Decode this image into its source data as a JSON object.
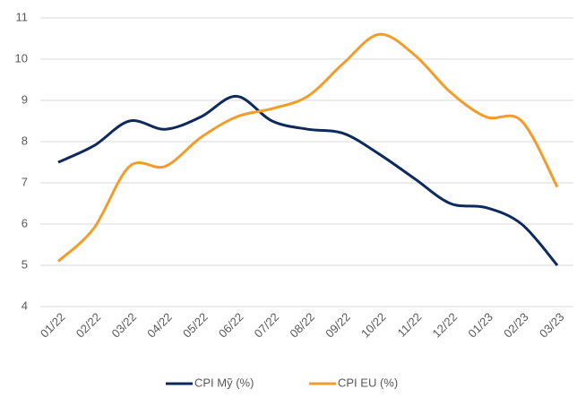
{
  "chart_data": {
    "type": "line",
    "categories": [
      "01/22",
      "02/22",
      "03/22",
      "04/22",
      "05/22",
      "06/22",
      "07/22",
      "08/22",
      "09/22",
      "10/22",
      "11/22",
      "12/22",
      "01/23",
      "02/23",
      "03/23"
    ],
    "series": [
      {
        "name": "CPI Mỹ (%)",
        "color": "#0e2a5c",
        "values": [
          7.5,
          7.9,
          8.5,
          8.3,
          8.6,
          9.1,
          8.5,
          8.3,
          8.2,
          7.7,
          7.1,
          6.5,
          6.4,
          6.0,
          5.0
        ]
      },
      {
        "name": "CPI EU (%)",
        "color": "#f39c2a",
        "values": [
          5.1,
          5.9,
          7.4,
          7.4,
          8.1,
          8.6,
          8.8,
          9.1,
          9.9,
          10.6,
          10.1,
          9.2,
          8.6,
          8.5,
          6.9
        ]
      }
    ],
    "ylim": [
      4,
      11
    ],
    "yticks": [
      4,
      5,
      6,
      7,
      8,
      9,
      10,
      11
    ],
    "grid": true,
    "legend": "bottom"
  }
}
